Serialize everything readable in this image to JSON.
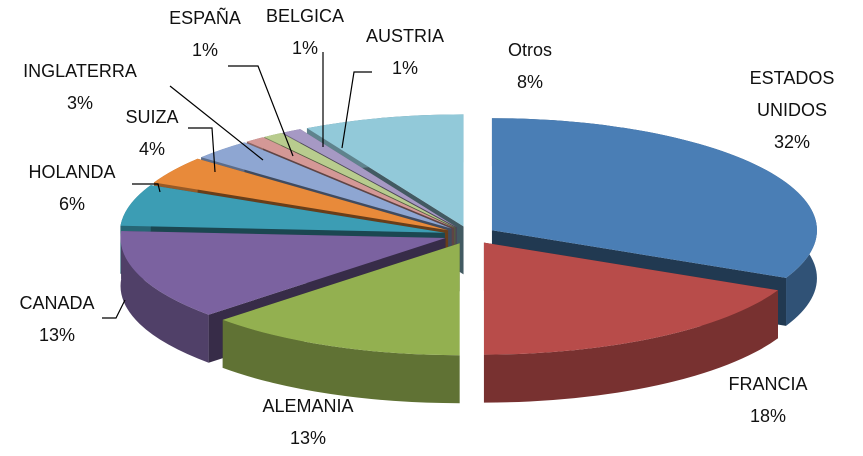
{
  "chart_data": {
    "type": "pie3d",
    "categories": [
      "ESTADOS UNIDOS",
      "FRANCIA",
      "ALEMANIA",
      "CANADA",
      "HOLANDA",
      "SUIZA",
      "INGLATERRA",
      "ESPAÑA",
      "BELGICA",
      "AUSTRIA",
      "Otros"
    ],
    "values": [
      32,
      18,
      13,
      13,
      6,
      4,
      3,
      1,
      1,
      1,
      8
    ],
    "value_labels": [
      "32%",
      "18%",
      "13%",
      "13%",
      "6%",
      "4%",
      "3%",
      "1%",
      "1%",
      "1%",
      "8%"
    ],
    "colors": [
      "#4a7eb5",
      "#b84c4a",
      "#93b050",
      "#7b62a0",
      "#3c9db4",
      "#e88a3a",
      "#8ea6d2",
      "#d49896",
      "#b8cc8e",
      "#a699c4",
      "#92c9d9"
    ]
  }
}
